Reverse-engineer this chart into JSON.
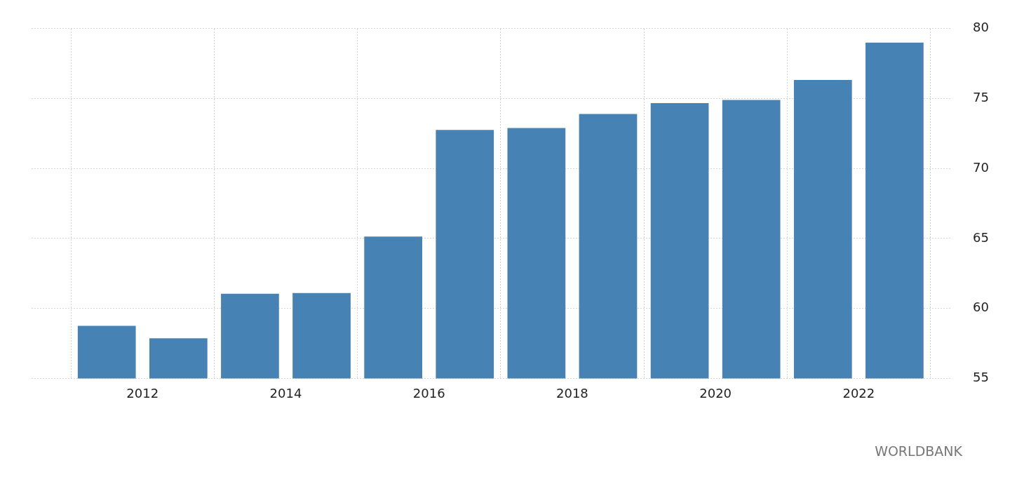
{
  "chart_data": {
    "type": "bar",
    "x": [
      2011.5,
      2012.5,
      2013.5,
      2014.5,
      2015.5,
      2016.5,
      2017.5,
      2018.5,
      2019.5,
      2020.5,
      2021.5,
      2022.5
    ],
    "series": [
      {
        "color": "#4682b4",
        "values": [
          58.76,
          57.86,
          61.05,
          61.1,
          65.14,
          72.76,
          72.9,
          73.9,
          74.67,
          74.9,
          76.33,
          79.0
        ]
      }
    ],
    "xlim": [
      2010.45,
      2023.3
    ],
    "xticks": [
      2012,
      2014,
      2016,
      2018,
      2020,
      2022
    ],
    "ylim": [
      55,
      80
    ],
    "yticks": [
      55,
      60,
      65,
      70,
      75,
      80
    ],
    "grid": true,
    "legend": false,
    "annotations": [
      "WORLDBANK"
    ]
  }
}
